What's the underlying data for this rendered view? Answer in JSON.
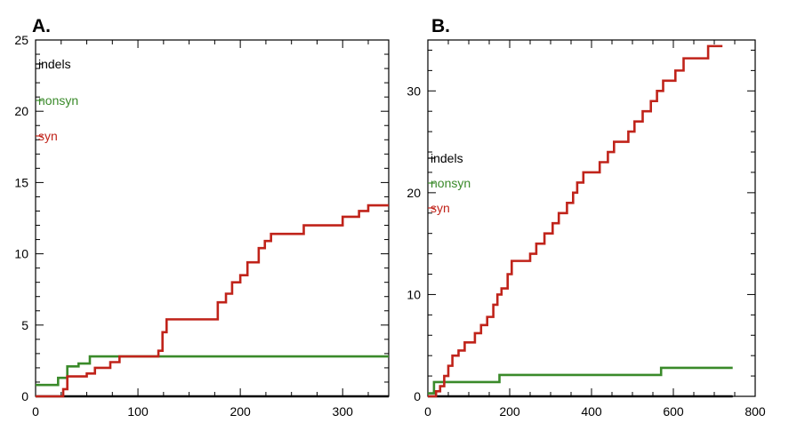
{
  "chart_data": [
    {
      "panel": "A.",
      "type": "line",
      "step": true,
      "xlim": [
        0,
        345
      ],
      "ylim": [
        0,
        25
      ],
      "xticks": [
        0,
        100,
        200,
        300
      ],
      "yticks": [
        0,
        5,
        10,
        15,
        20,
        25
      ],
      "legend": [
        {
          "name": "indels",
          "color": "#000000"
        },
        {
          "name": "nonsyn",
          "color": "#3a8a2a"
        },
        {
          "name": "syn",
          "color": "#c0231a"
        }
      ],
      "series": [
        {
          "name": "indels",
          "color": "#000000",
          "points": [
            [
              0,
              0
            ],
            [
              345,
              0
            ]
          ]
        },
        {
          "name": "nonsyn",
          "color": "#3a8a2a",
          "points": [
            [
              0,
              0.8
            ],
            [
              22,
              0.8
            ],
            [
              22,
              1.3
            ],
            [
              31,
              1.3
            ],
            [
              31,
              2.1
            ],
            [
              42,
              2.1
            ],
            [
              42,
              2.3
            ],
            [
              53,
              2.3
            ],
            [
              53,
              2.8
            ],
            [
              345,
              2.8
            ]
          ]
        },
        {
          "name": "syn",
          "color": "#c0231a",
          "points": [
            [
              0,
              0
            ],
            [
              27,
              0
            ],
            [
              27,
              0.5
            ],
            [
              31,
              0.5
            ],
            [
              31,
              1.4
            ],
            [
              50,
              1.4
            ],
            [
              50,
              1.6
            ],
            [
              58,
              1.6
            ],
            [
              58,
              2.0
            ],
            [
              73,
              2.0
            ],
            [
              73,
              2.4
            ],
            [
              82,
              2.4
            ],
            [
              82,
              2.8
            ],
            [
              120,
              2.8
            ],
            [
              120,
              3.2
            ],
            [
              124,
              3.2
            ],
            [
              124,
              4.5
            ],
            [
              128,
              4.5
            ],
            [
              128,
              5.4
            ],
            [
              178,
              5.4
            ],
            [
              178,
              6.6
            ],
            [
              186,
              6.6
            ],
            [
              186,
              7.2
            ],
            [
              192,
              7.2
            ],
            [
              192,
              8.0
            ],
            [
              200,
              8.0
            ],
            [
              200,
              8.5
            ],
            [
              207,
              8.5
            ],
            [
              207,
              9.4
            ],
            [
              218,
              9.4
            ],
            [
              218,
              10.4
            ],
            [
              224,
              10.4
            ],
            [
              224,
              10.9
            ],
            [
              230,
              10.9
            ],
            [
              230,
              11.4
            ],
            [
              262,
              11.4
            ],
            [
              262,
              12.0
            ],
            [
              300,
              12.0
            ],
            [
              300,
              12.6
            ],
            [
              316,
              12.6
            ],
            [
              316,
              13.0
            ],
            [
              325,
              13.0
            ],
            [
              325,
              13.4
            ],
            [
              345,
              13.4
            ]
          ]
        }
      ]
    },
    {
      "panel": "B.",
      "type": "line",
      "step": true,
      "xlim": [
        0,
        800
      ],
      "ylim": [
        0,
        35
      ],
      "xticks": [
        0,
        200,
        400,
        600,
        800
      ],
      "yticks": [
        0,
        10,
        20,
        30
      ],
      "legend": [
        {
          "name": "indels",
          "color": "#000000"
        },
        {
          "name": "nonsyn",
          "color": "#3a8a2a"
        },
        {
          "name": "syn",
          "color": "#c0231a"
        }
      ],
      "series": [
        {
          "name": "indels",
          "color": "#000000",
          "points": [
            [
              0,
              0
            ],
            [
              745,
              0
            ]
          ]
        },
        {
          "name": "nonsyn",
          "color": "#3a8a2a",
          "points": [
            [
              0,
              0.3
            ],
            [
              15,
              0.3
            ],
            [
              15,
              1.4
            ],
            [
              175,
              1.4
            ],
            [
              175,
              2.1
            ],
            [
              570,
              2.1
            ],
            [
              570,
              2.8
            ],
            [
              745,
              2.8
            ]
          ]
        },
        {
          "name": "syn",
          "color": "#c0231a",
          "points": [
            [
              0,
              0
            ],
            [
              20,
              0
            ],
            [
              20,
              0.5
            ],
            [
              30,
              0.5
            ],
            [
              30,
              1.0
            ],
            [
              40,
              1.0
            ],
            [
              40,
              2.0
            ],
            [
              50,
              2.0
            ],
            [
              50,
              3.0
            ],
            [
              60,
              3.0
            ],
            [
              60,
              4.0
            ],
            [
              75,
              4.0
            ],
            [
              75,
              4.5
            ],
            [
              90,
              4.5
            ],
            [
              90,
              5.3
            ],
            [
              115,
              5.3
            ],
            [
              115,
              6.2
            ],
            [
              130,
              6.2
            ],
            [
              130,
              7.0
            ],
            [
              145,
              7.0
            ],
            [
              145,
              7.8
            ],
            [
              160,
              7.8
            ],
            [
              160,
              9.0
            ],
            [
              170,
              9.0
            ],
            [
              170,
              10.0
            ],
            [
              180,
              10.0
            ],
            [
              180,
              10.6
            ],
            [
              195,
              10.6
            ],
            [
              195,
              12.0
            ],
            [
              205,
              12.0
            ],
            [
              205,
              13.3
            ],
            [
              250,
              13.3
            ],
            [
              250,
              14.0
            ],
            [
              265,
              14.0
            ],
            [
              265,
              15.0
            ],
            [
              285,
              15.0
            ],
            [
              285,
              16.0
            ],
            [
              305,
              16.0
            ],
            [
              305,
              17.0
            ],
            [
              320,
              17.0
            ],
            [
              320,
              18.0
            ],
            [
              340,
              18.0
            ],
            [
              340,
              19.0
            ],
            [
              355,
              19.0
            ],
            [
              355,
              20.0
            ],
            [
              365,
              20.0
            ],
            [
              365,
              21.0
            ],
            [
              380,
              21.0
            ],
            [
              380,
              22.0
            ],
            [
              420,
              22.0
            ],
            [
              420,
              23.0
            ],
            [
              440,
              23.0
            ],
            [
              440,
              24.0
            ],
            [
              455,
              24.0
            ],
            [
              455,
              25.0
            ],
            [
              490,
              25.0
            ],
            [
              490,
              26.0
            ],
            [
              505,
              26.0
            ],
            [
              505,
              27.0
            ],
            [
              525,
              27.0
            ],
            [
              525,
              28.0
            ],
            [
              545,
              28.0
            ],
            [
              545,
              29.0
            ],
            [
              560,
              29.0
            ],
            [
              560,
              30.0
            ],
            [
              575,
              30.0
            ],
            [
              575,
              31.0
            ],
            [
              605,
              31.0
            ],
            [
              605,
              32.0
            ],
            [
              625,
              32.0
            ],
            [
              625,
              33.2
            ],
            [
              685,
              33.2
            ],
            [
              685,
              34.4
            ],
            [
              720,
              34.4
            ]
          ]
        }
      ]
    }
  ]
}
